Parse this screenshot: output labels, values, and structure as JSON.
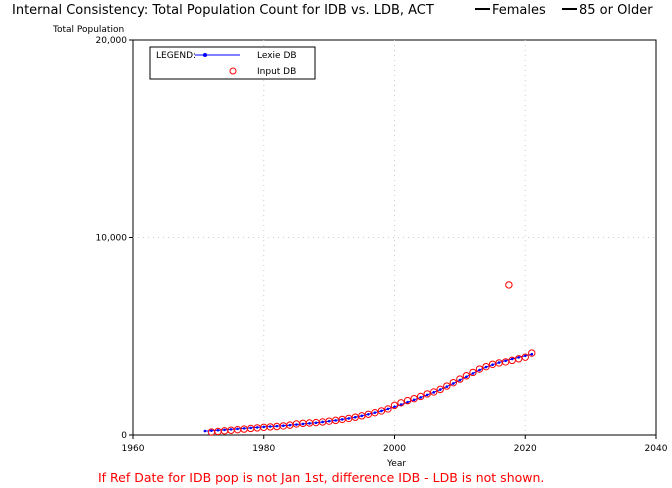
{
  "chart_data": {
    "type": "line",
    "title": "Internal Consistency: Total Population Count for IDB vs. LDB, ACT",
    "title_suffix_1": "Females",
    "title_suffix_2": "85 or Older",
    "ylabel": "Total Population",
    "xlabel": "Year",
    "xlim": [
      1960,
      2040
    ],
    "ylim": [
      0,
      20000
    ],
    "x_ticks": [
      1960,
      1980,
      2000,
      2020,
      2040
    ],
    "y_ticks": [
      0,
      10000,
      20000
    ],
    "x_tick_labels": [
      "1960",
      "1980",
      "2000",
      "2020",
      "2040"
    ],
    "y_tick_labels": [
      "0",
      "10,000",
      "20,000"
    ],
    "grid": true,
    "legend": {
      "title": "LEGEND:",
      "placement": "top-left",
      "entries": [
        "Lexie DB",
        "Input DB"
      ]
    },
    "footnote": "If Ref Date for IDB pop is not Jan 1st, difference IDB - LDB is not shown.",
    "colors": {
      "lexie": "#0000ff",
      "input": "#ff0000",
      "footnote": "#ff0000"
    },
    "series": [
      {
        "name": "Lexie DB",
        "style": "line-with-dots",
        "x": [
          1971,
          1972,
          1973,
          1974,
          1975,
          1976,
          1977,
          1978,
          1979,
          1980,
          1981,
          1982,
          1983,
          1984,
          1985,
          1986,
          1987,
          1988,
          1989,
          1990,
          1991,
          1992,
          1993,
          1994,
          1995,
          1996,
          1997,
          1998,
          1999,
          2000,
          2001,
          2002,
          2003,
          2004,
          2005,
          2006,
          2007,
          2008,
          2009,
          2010,
          2011,
          2012,
          2013,
          2014,
          2015,
          2016,
          2017,
          2018,
          2019,
          2020,
          2021
        ],
        "y": [
          200,
          220,
          240,
          260,
          285,
          310,
          335,
          360,
          385,
          410,
          430,
          450,
          470,
          500,
          530,
          560,
          590,
          620,
          660,
          700,
          740,
          790,
          840,
          900,
          970,
          1050,
          1130,
          1220,
          1320,
          1430,
          1540,
          1660,
          1780,
          1900,
          2030,
          2160,
          2300,
          2450,
          2610,
          2780,
          2950,
          3120,
          3290,
          3440,
          3560,
          3670,
          3760,
          3850,
          3930,
          4010,
          4090
        ]
      },
      {
        "name": "Input DB",
        "style": "open-circles",
        "x": [
          1972,
          1973,
          1974,
          1975,
          1976,
          1977,
          1978,
          1979,
          1980,
          1981,
          1982,
          1983,
          1984,
          1985,
          1986,
          1987,
          1988,
          1989,
          1990,
          1991,
          1992,
          1993,
          1994,
          1995,
          1996,
          1997,
          1998,
          1999,
          2000,
          2001,
          2002,
          2003,
          2004,
          2005,
          2006,
          2007,
          2008,
          2009,
          2010,
          2011,
          2012,
          2013,
          2014,
          2015,
          2016,
          2017,
          2018,
          2019,
          2020,
          2021,
          2017.5
        ],
        "y": [
          150,
          180,
          210,
          240,
          270,
          300,
          330,
          360,
          390,
          410,
          430,
          460,
          500,
          560,
          590,
          610,
          630,
          660,
          700,
          740,
          790,
          840,
          900,
          970,
          1050,
          1130,
          1220,
          1320,
          1500,
          1630,
          1740,
          1840,
          1950,
          2080,
          2180,
          2310,
          2480,
          2650,
          2830,
          3000,
          3170,
          3340,
          3460,
          3580,
          3650,
          3700,
          3780,
          3860,
          3940,
          4150,
          7600
        ]
      }
    ]
  }
}
